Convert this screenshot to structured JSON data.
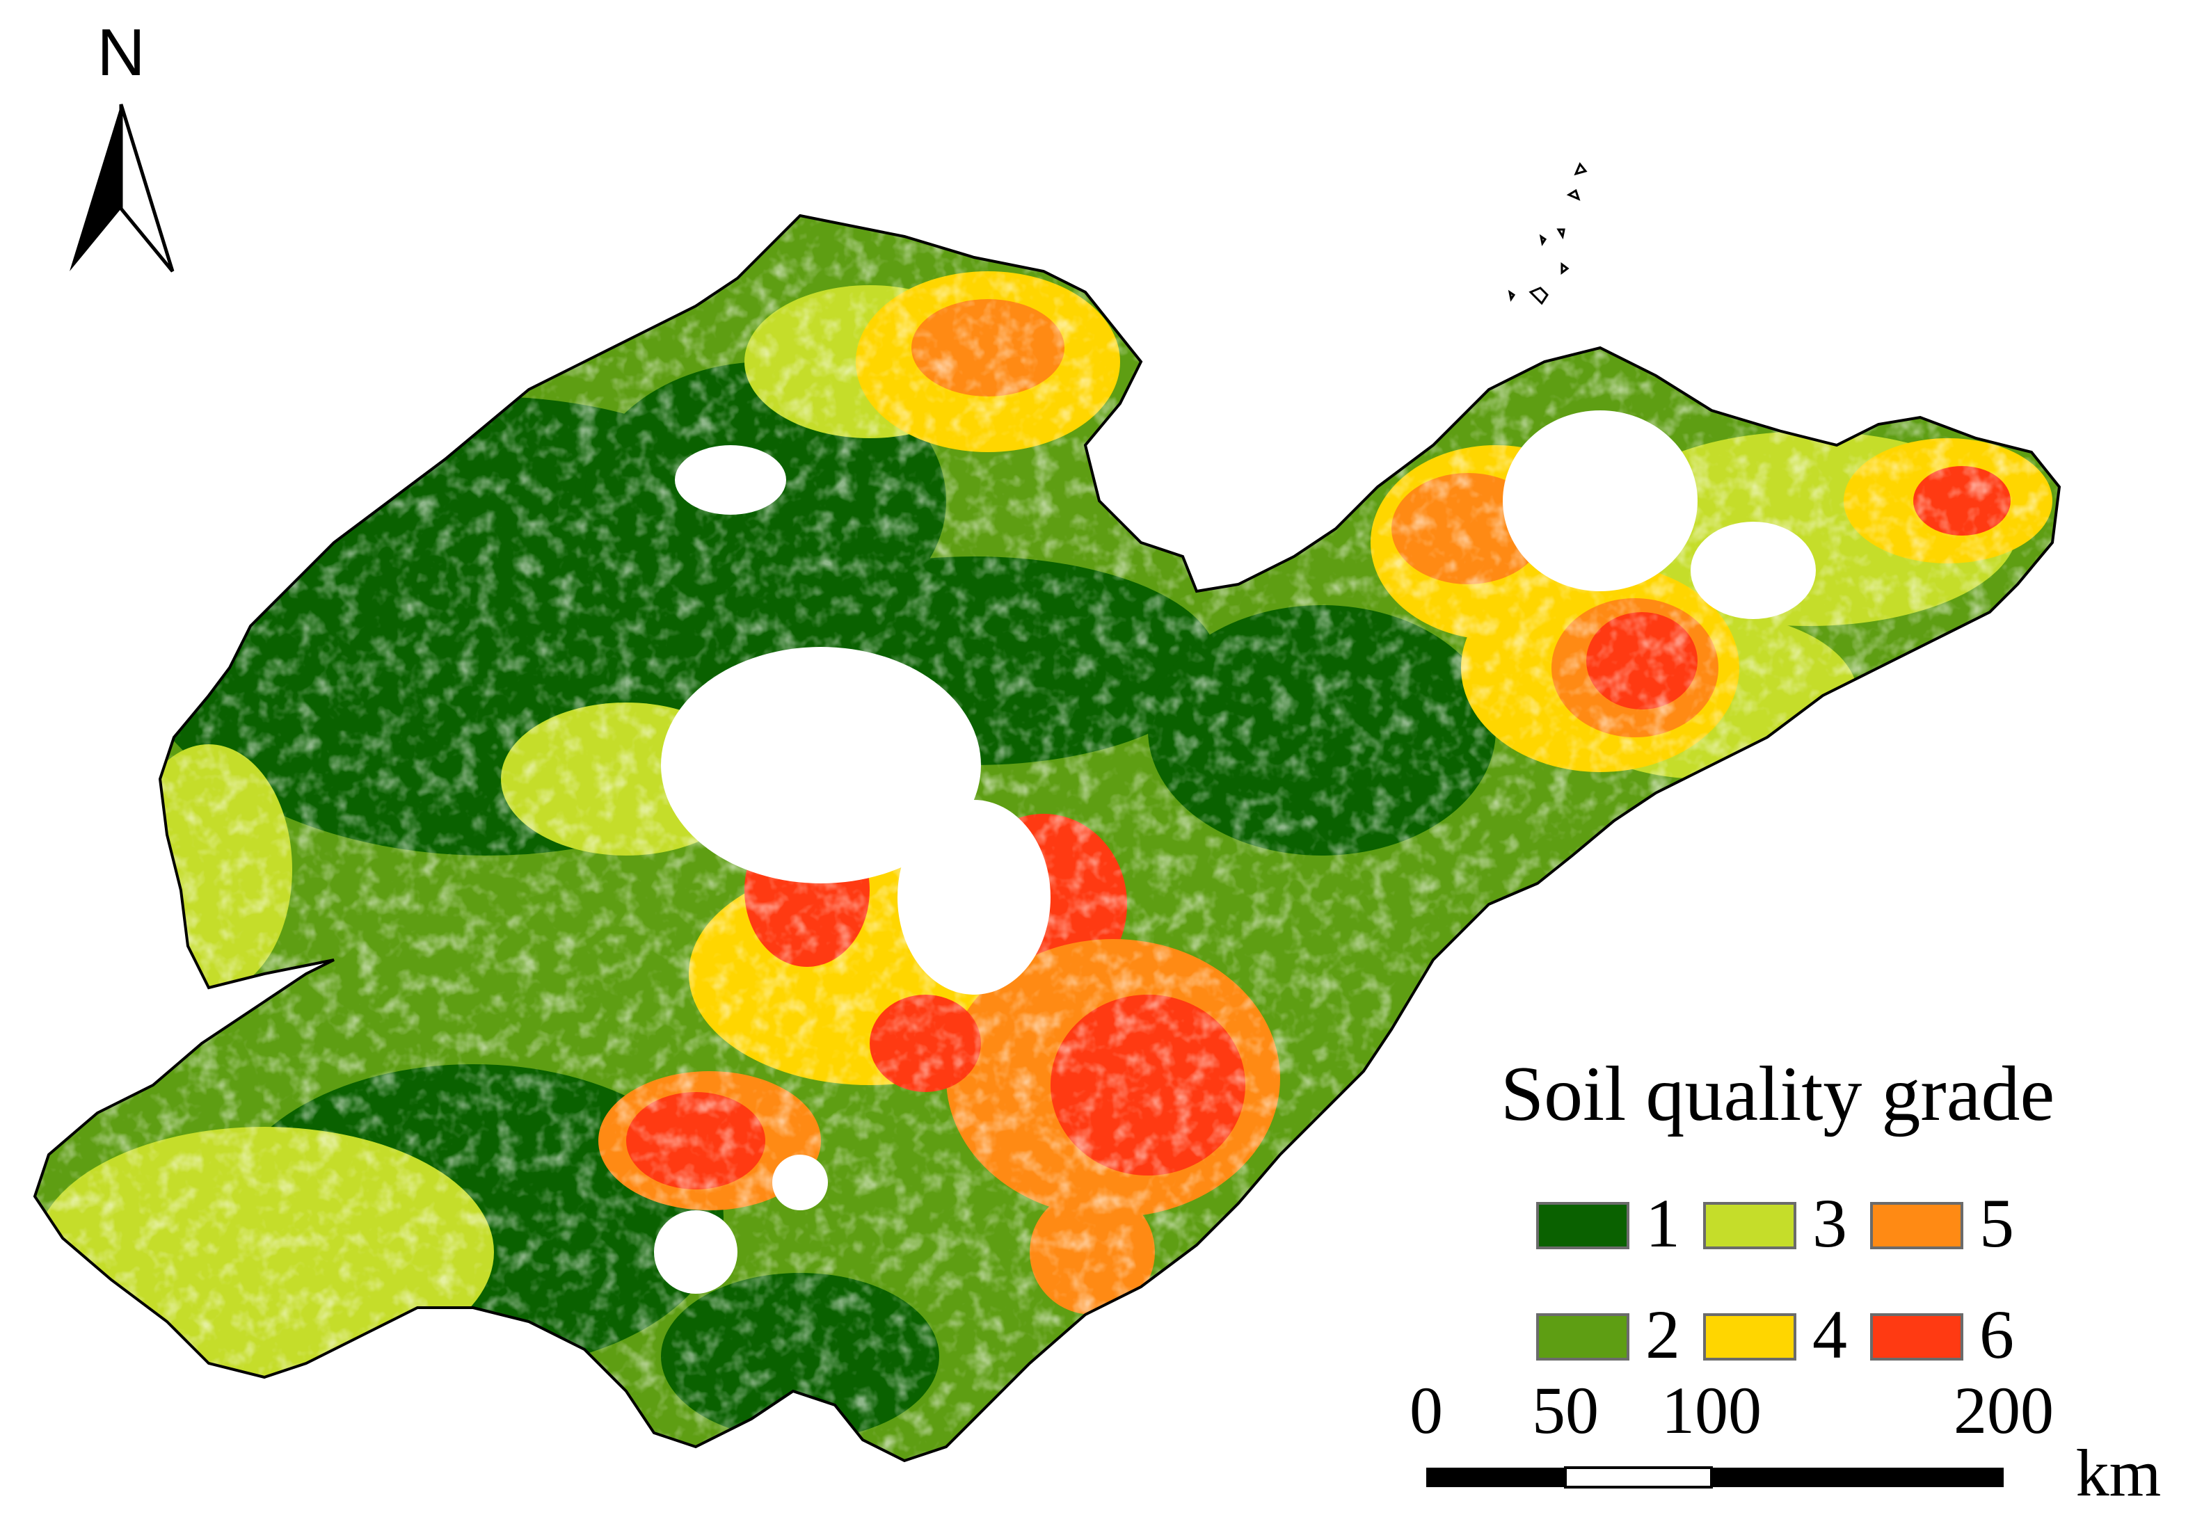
{
  "north_arrow": {
    "label": "N"
  },
  "legend": {
    "title": "Soil quality grade",
    "items": [
      {
        "label": "1",
        "color": "#0a6100"
      },
      {
        "label": "2",
        "color": "#5e9e13"
      },
      {
        "label": "3",
        "color": "#c5dd2a"
      },
      {
        "label": "4",
        "color": "#ffd600"
      },
      {
        "label": "5",
        "color": "#ff8a14"
      },
      {
        "label": "6",
        "color": "#ff3a12"
      }
    ]
  },
  "scale_bar": {
    "ticks": [
      "0",
      "50",
      "100",
      "200"
    ],
    "unit": "km"
  }
}
